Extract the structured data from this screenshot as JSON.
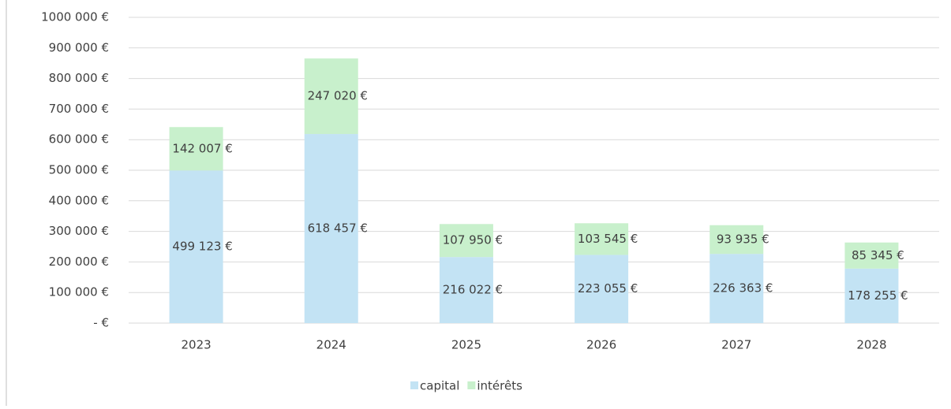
{
  "chart_data": {
    "type": "stacked_bar",
    "categories": [
      "2023",
      "2024",
      "2025",
      "2026",
      "2027",
      "2028"
    ],
    "series": [
      {
        "name": "capital",
        "color": "#c3e3f4",
        "values": [
          499123,
          618457,
          216022,
          223055,
          226363,
          178255
        ],
        "value_labels": [
          "499 123 €",
          "618 457 €",
          "216 022 €",
          "223 055 €",
          "226 363 €",
          "178 255 €"
        ]
      },
      {
        "name": "intérêts",
        "color": "#c8f0cc",
        "values": [
          142007,
          247020,
          107950,
          103545,
          93935,
          85345
        ],
        "value_labels": [
          "142 007 €",
          "247 020 €",
          "107 950 €",
          "103 545 €",
          "93 935 €",
          "85 345 €"
        ]
      }
    ],
    "ylim": [
      0,
      1000000
    ],
    "yticks": [
      {
        "value": 0,
        "label": "-  €"
      },
      {
        "value": 100000,
        "label": "100 000 €"
      },
      {
        "value": 200000,
        "label": "200 000 €"
      },
      {
        "value": 300000,
        "label": "300 000 €"
      },
      {
        "value": 400000,
        "label": "400 000 €"
      },
      {
        "value": 500000,
        "label": "500 000 €"
      },
      {
        "value": 600000,
        "label": "600 000 €"
      },
      {
        "value": 700000,
        "label": "700 000 €"
      },
      {
        "value": 800000,
        "label": "800 000 €"
      },
      {
        "value": 900000,
        "label": "900 000 €"
      },
      {
        "value": 1000000,
        "label": "1000 000 €"
      }
    ],
    "grid": true,
    "legend": "bottom"
  }
}
